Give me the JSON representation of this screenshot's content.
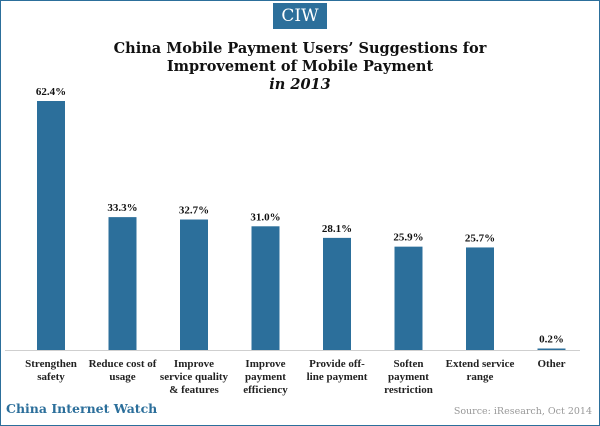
{
  "logo": "CIW",
  "title_line1": "China Mobile Payment Users’ Suggestions for",
  "title_line2": "Improvement of Mobile Payment",
  "title_line3": "in 2013",
  "footer_left": "China Internet Watch",
  "footer_right": "Source: iResearch, Oct 2014",
  "colors": {
    "bar": "#2c6f9b",
    "accent": "#2c6f9b"
  },
  "chart_data": {
    "type": "bar",
    "title": "China Mobile Payment Users’ Suggestions for Improvement of Mobile Payment in 2013",
    "categories": [
      [
        "Strengthen",
        "safety"
      ],
      [
        "Reduce cost of",
        "usage"
      ],
      [
        "Improve",
        "service quality",
        "& features"
      ],
      [
        "Improve",
        "payment",
        "efficiency"
      ],
      [
        "Provide off-",
        "line payment"
      ],
      [
        "Soften",
        "payment",
        "restriction"
      ],
      [
        "Extend service",
        "range"
      ],
      [
        "Other"
      ]
    ],
    "values": [
      62.4,
      33.3,
      32.7,
      31.0,
      28.1,
      25.9,
      25.7,
      0.2
    ],
    "value_labels": [
      "62.4%",
      "33.3%",
      "32.7%",
      "31.0%",
      "28.1%",
      "25.9%",
      "25.7%",
      "0.2%"
    ],
    "ylim": [
      0,
      62.4
    ],
    "grid": false,
    "legend": "none"
  }
}
